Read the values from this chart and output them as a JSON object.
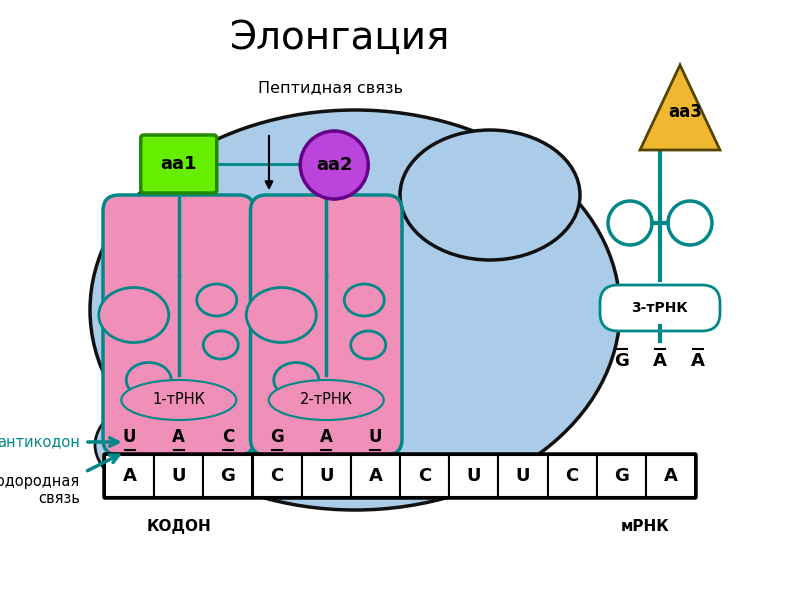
{
  "title": "Элонгация",
  "subtitle": "Пептидная связь",
  "bg_color": "#aacce8",
  "trna_box_color": "#f090b8",
  "trna_outline": "#008888",
  "mrna_color": "#ffffff",
  "aa1_color": "#66ee00",
  "aa1_edge": "#228800",
  "aa2_color": "#bb44dd",
  "aa2_edge": "#660088",
  "aa3_color": "#f0b830",
  "aa3_edge": "#554400",
  "teal": "#008888",
  "black": "#000000",
  "white": "#ffffff",
  "mrna_letters": [
    "A",
    "U",
    "G",
    "C",
    "U",
    "A",
    "C",
    "U",
    "U",
    "C",
    "G",
    "A"
  ],
  "trna1_anticodon": [
    "U",
    "A",
    "C"
  ],
  "trna2_anticodon": [
    "G",
    "A",
    "U"
  ],
  "trna3_anticodon": [
    "G",
    "A",
    "A"
  ],
  "trna1_label": "1-тРНК",
  "trna2_label": "2-тРНК",
  "trna3_label": "3-тРНК",
  "aa1_label": "aa1",
  "aa2_label": "aa2",
  "aa3_label": "aa3",
  "codon_label": "КОДОН",
  "mrna_label": "мРНК",
  "anticodon_label": "антикодон",
  "hbond_label": "Водородная\nсвязь"
}
